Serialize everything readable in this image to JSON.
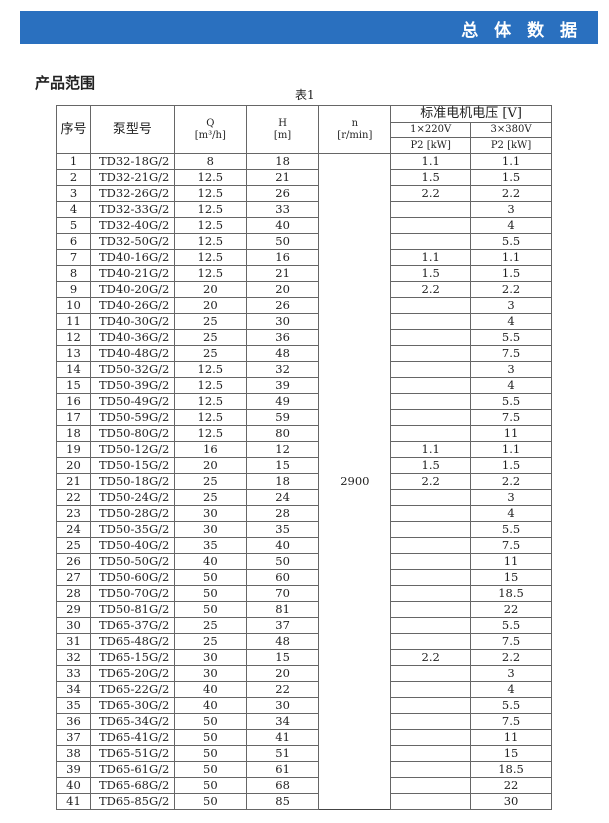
{
  "banner": {
    "title": "总 体 数 据",
    "color": "#2a70bf"
  },
  "section_title": "产品范围",
  "caption": "表1",
  "headers": {
    "index": "序号",
    "model": "泵型号",
    "q": "Q",
    "q_unit": "[m³/h]",
    "h": "H",
    "h_unit": "[m]",
    "n": "n",
    "n_unit": "[r/min]",
    "voltage": "标准电机电压 [V]",
    "v1": "1×220V",
    "v3": "3×380V",
    "p2_1": "P2 [kW]",
    "p2_3": "P2 [kW]"
  },
  "speed": "2900",
  "rows": [
    [
      "1",
      "TD32-18G/2",
      "8",
      "18",
      "1.1",
      "1.1"
    ],
    [
      "2",
      "TD32-21G/2",
      "12.5",
      "21",
      "1.5",
      "1.5"
    ],
    [
      "3",
      "TD32-26G/2",
      "12.5",
      "26",
      "2.2",
      "2.2"
    ],
    [
      "4",
      "TD32-33G/2",
      "12.5",
      "33",
      "",
      "3"
    ],
    [
      "5",
      "TD32-40G/2",
      "12.5",
      "40",
      "",
      "4"
    ],
    [
      "6",
      "TD32-50G/2",
      "12.5",
      "50",
      "",
      "5.5"
    ],
    [
      "7",
      "TD40-16G/2",
      "12.5",
      "16",
      "1.1",
      "1.1"
    ],
    [
      "8",
      "TD40-21G/2",
      "12.5",
      "21",
      "1.5",
      "1.5"
    ],
    [
      "9",
      "TD40-20G/2",
      "20",
      "20",
      "2.2",
      "2.2"
    ],
    [
      "10",
      "TD40-26G/2",
      "20",
      "26",
      "",
      "3"
    ],
    [
      "11",
      "TD40-30G/2",
      "25",
      "30",
      "",
      "4"
    ],
    [
      "12",
      "TD40-36G/2",
      "25",
      "36",
      "",
      "5.5"
    ],
    [
      "13",
      "TD40-48G/2",
      "25",
      "48",
      "",
      "7.5"
    ],
    [
      "14",
      "TD50-32G/2",
      "12.5",
      "32",
      "",
      "3"
    ],
    [
      "15",
      "TD50-39G/2",
      "12.5",
      "39",
      "",
      "4"
    ],
    [
      "16",
      "TD50-49G/2",
      "12.5",
      "49",
      "",
      "5.5"
    ],
    [
      "17",
      "TD50-59G/2",
      "12.5",
      "59",
      "",
      "7.5"
    ],
    [
      "18",
      "TD50-80G/2",
      "12.5",
      "80",
      "",
      "11"
    ],
    [
      "19",
      "TD50-12G/2",
      "16",
      "12",
      "1.1",
      "1.1"
    ],
    [
      "20",
      "TD50-15G/2",
      "20",
      "15",
      "1.5",
      "1.5"
    ],
    [
      "21",
      "TD50-18G/2",
      "25",
      "18",
      "2.2",
      "2.2"
    ],
    [
      "22",
      "TD50-24G/2",
      "25",
      "24",
      "",
      "3"
    ],
    [
      "23",
      "TD50-28G/2",
      "30",
      "28",
      "",
      "4"
    ],
    [
      "24",
      "TD50-35G/2",
      "30",
      "35",
      "",
      "5.5"
    ],
    [
      "25",
      "TD50-40G/2",
      "35",
      "40",
      "",
      "7.5"
    ],
    [
      "26",
      "TD50-50G/2",
      "40",
      "50",
      "",
      "11"
    ],
    [
      "27",
      "TD50-60G/2",
      "50",
      "60",
      "",
      "15"
    ],
    [
      "28",
      "TD50-70G/2",
      "50",
      "70",
      "",
      "18.5"
    ],
    [
      "29",
      "TD50-81G/2",
      "50",
      "81",
      "",
      "22"
    ],
    [
      "30",
      "TD65-37G/2",
      "25",
      "37",
      "",
      "5.5"
    ],
    [
      "31",
      "TD65-48G/2",
      "25",
      "48",
      "",
      "7.5"
    ],
    [
      "32",
      "TD65-15G/2",
      "30",
      "15",
      "2.2",
      "2.2"
    ],
    [
      "33",
      "TD65-20G/2",
      "30",
      "20",
      "",
      "3"
    ],
    [
      "34",
      "TD65-22G/2",
      "40",
      "22",
      "",
      "4"
    ],
    [
      "35",
      "TD65-30G/2",
      "40",
      "30",
      "",
      "5.5"
    ],
    [
      "36",
      "TD65-34G/2",
      "50",
      "34",
      "",
      "7.5"
    ],
    [
      "37",
      "TD65-41G/2",
      "50",
      "41",
      "",
      "11"
    ],
    [
      "38",
      "TD65-51G/2",
      "50",
      "51",
      "",
      "15"
    ],
    [
      "39",
      "TD65-61G/2",
      "50",
      "61",
      "",
      "18.5"
    ],
    [
      "40",
      "TD65-68G/2",
      "50",
      "68",
      "",
      "22"
    ],
    [
      "41",
      "TD65-85G/2",
      "50",
      "85",
      "",
      "30"
    ]
  ]
}
